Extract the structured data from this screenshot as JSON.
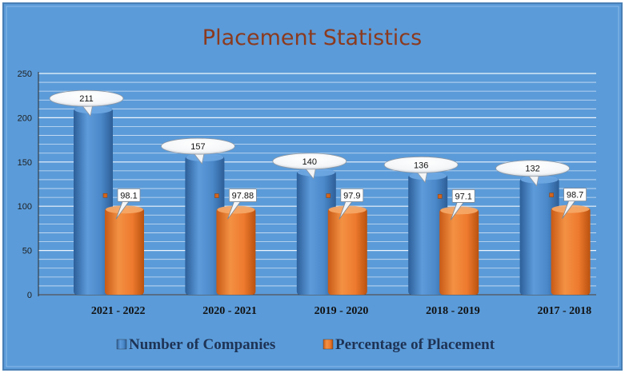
{
  "chart_data": {
    "type": "bar",
    "title": "Placement Statistics",
    "categories": [
      "2021 - 2022",
      "2020 - 2021",
      "2019 - 2020",
      "2018 - 2019",
      "2017 - 2018"
    ],
    "series": [
      {
        "name": "Number of Companies",
        "values": [
          211,
          157,
          140,
          136,
          132
        ],
        "color": "#4A88C9",
        "labels": [
          "211",
          "157",
          "140",
          "136",
          "132"
        ]
      },
      {
        "name": "Percentage of Placement",
        "values": [
          98.1,
          97.88,
          97.9,
          97.1,
          98.7
        ],
        "color": "#EE7A2E",
        "labels": [
          "98.1",
          "97.88",
          "97.9",
          "97.1",
          "98.7"
        ]
      }
    ],
    "ylim": [
      0,
      250
    ],
    "yticks": [
      0,
      50,
      100,
      150,
      200,
      250
    ],
    "ytick_labels": [
      "0",
      "50",
      "100",
      "150",
      "200",
      "250"
    ],
    "grid": true,
    "legend_position": "bottom",
    "background_color": "#5B9BD9"
  }
}
